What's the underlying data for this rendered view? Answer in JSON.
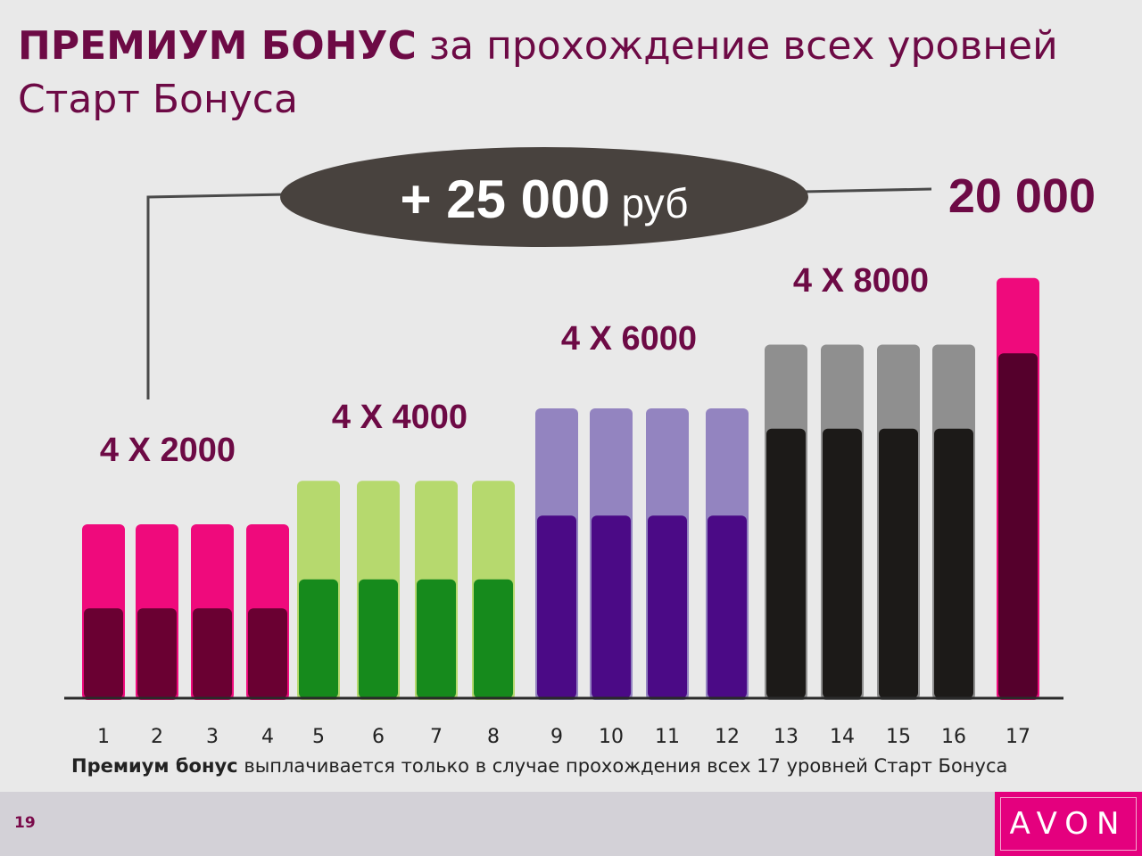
{
  "title": {
    "bold": "ПРЕМИУМ БОНУС",
    "rest": " за прохождение всех уровней Старт Бонуса"
  },
  "callout": {
    "amount": "+ 25 000",
    "unit": " руб",
    "extra": "20 000"
  },
  "chart_data": {
    "type": "bar",
    "categories": [
      "1",
      "2",
      "3",
      "4",
      "5",
      "6",
      "7",
      "8",
      "9",
      "10",
      "11",
      "12",
      "13",
      "14",
      "15",
      "16",
      "17"
    ],
    "group_labels": [
      "4 X 2000",
      "4 X 4000",
      "4 X 6000",
      "4 X 8000"
    ],
    "relative_heights": [
      0.6,
      0.6,
      0.6,
      0.6,
      0.75,
      0.75,
      0.75,
      0.75,
      1.0,
      1.0,
      1.0,
      1.0,
      1.22,
      1.22,
      1.22,
      1.22,
      1.45
    ],
    "colors": {
      "g1": [
        "#ef0a7c",
        "#6a0032"
      ],
      "g2": [
        "#b6d96e",
        "#168a1c"
      ],
      "g3": [
        "#9384c0",
        "#4b0a86"
      ],
      "g4": [
        "#8f8f8f",
        "#1c1a18"
      ],
      "g5": [
        "#ef0a7c",
        "#55002c"
      ]
    }
  },
  "footnote": {
    "bold": "Премиум бонус",
    "rest": " выплачивается только в случае прохождения всех 17  уровней Старт Бонуса"
  },
  "page_number": "19",
  "logo": "AVON"
}
